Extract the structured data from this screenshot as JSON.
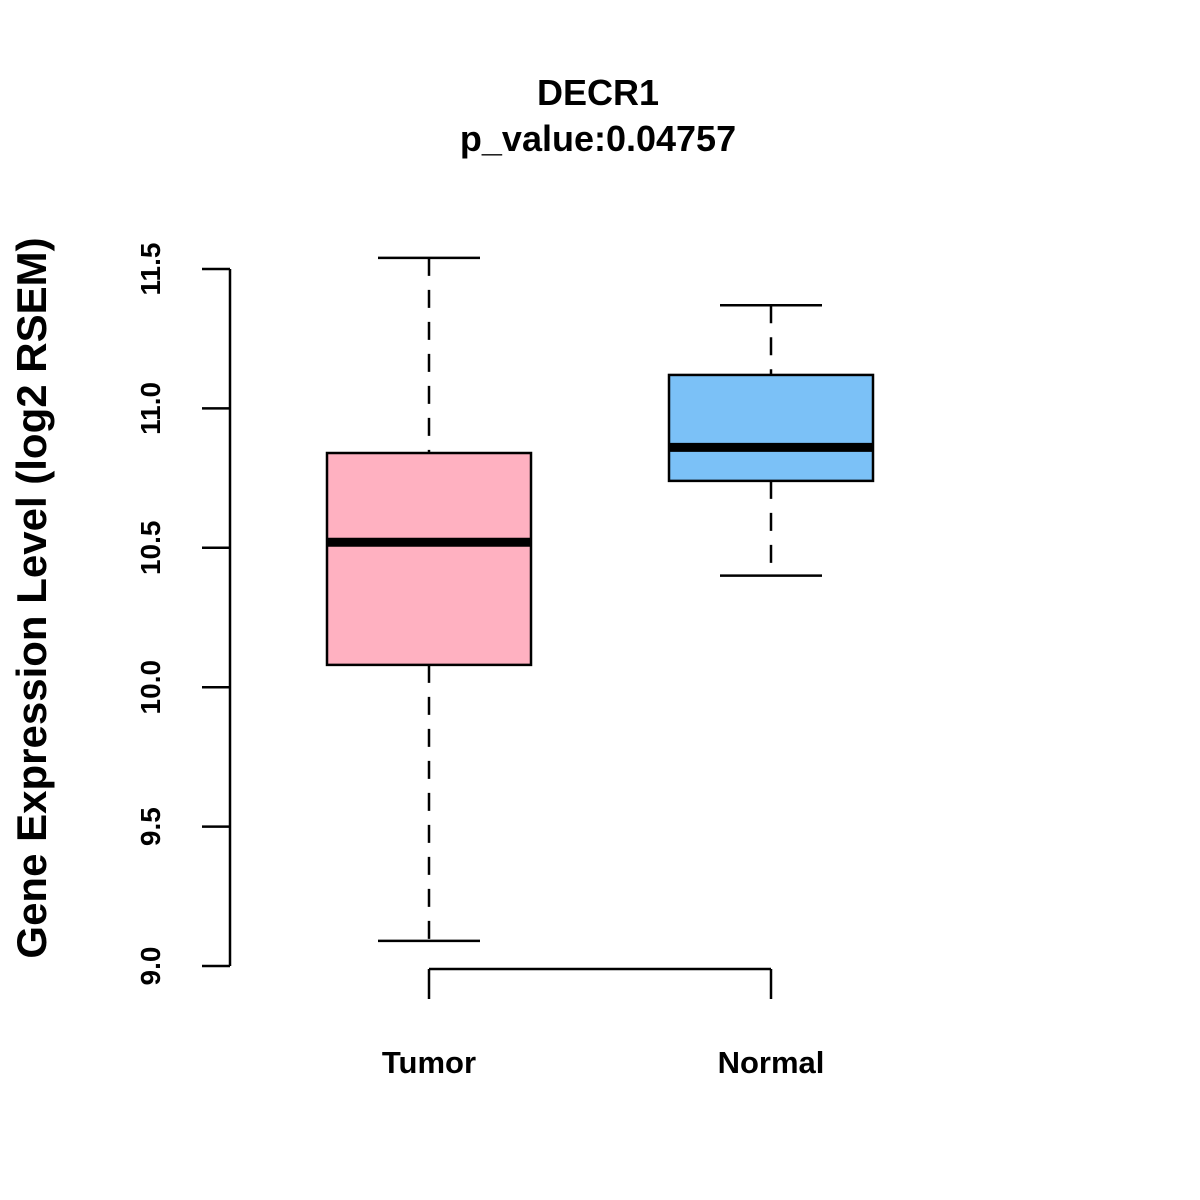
{
  "chart_data": {
    "type": "boxplot",
    "title": "DECR1",
    "subtitle": "p_value:0.04757",
    "ylabel": "Gene Expression Level (log2 RSEM)",
    "xlabel": "",
    "ylim": [
      9.0,
      11.5
    ],
    "yticks": [
      9.0,
      9.5,
      10.0,
      10.5,
      11.0,
      11.5
    ],
    "ytick_labels": [
      "9.0",
      "9.5",
      "10.0",
      "10.5",
      "11.0",
      "11.5"
    ],
    "grid": false,
    "categories": [
      "Tumor",
      "Normal"
    ],
    "boxes": [
      {
        "category": "Tumor",
        "whisker_low": 9.09,
        "q1": 10.08,
        "median": 10.52,
        "q3": 10.84,
        "whisker_high": 11.54,
        "color": "#FFB1C1"
      },
      {
        "category": "Normal",
        "whisker_low": 10.4,
        "q1": 10.74,
        "median": 10.86,
        "q3": 11.12,
        "whisker_high": 11.37,
        "color": "#7BC1F7"
      }
    ]
  }
}
